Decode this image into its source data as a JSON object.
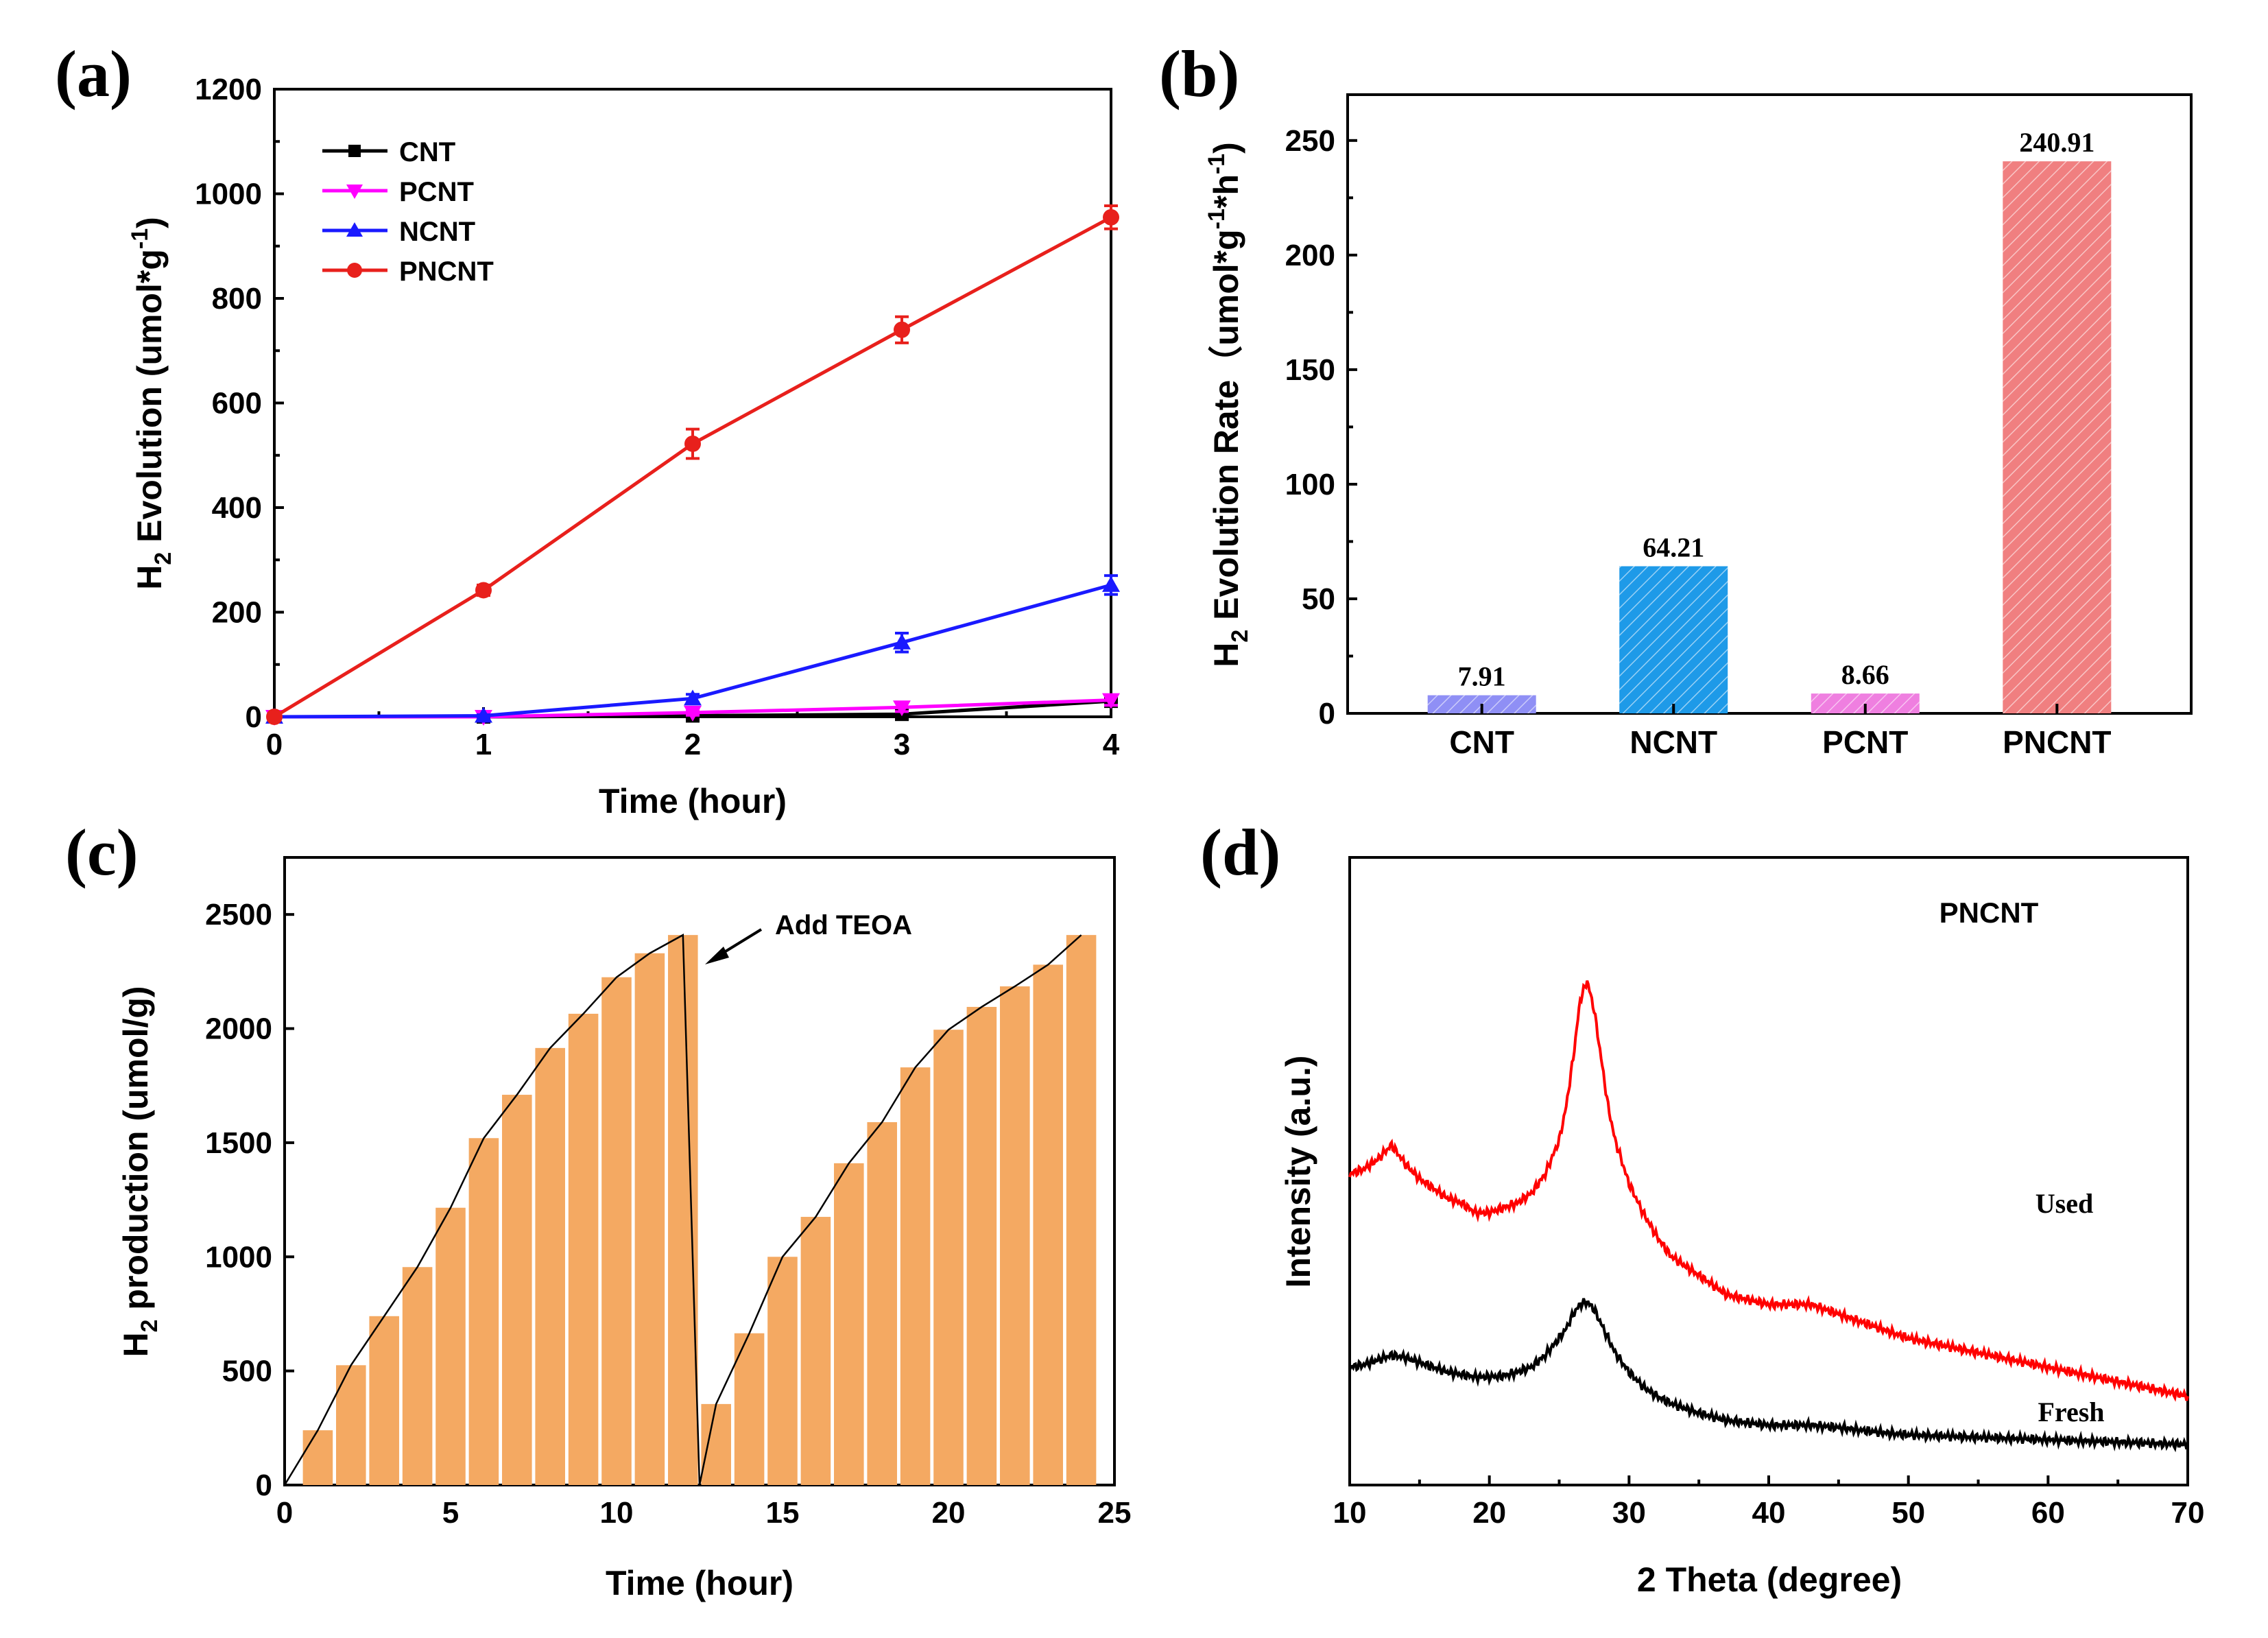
{
  "chart_data": [
    {
      "panel": "(a)",
      "type": "line",
      "xlabel": "Time (hour)",
      "ylabel": "H2 Evolution (umol*g-1)",
      "ylabel_parts": {
        "main": "H",
        "sub": "2",
        "rest": " Evolution (umol*g",
        "sup": "-1",
        "end": ")"
      },
      "x": [
        0,
        1,
        2,
        3,
        4
      ],
      "xlim": [
        0,
        4
      ],
      "ylim": [
        0,
        1200
      ],
      "xticks": [
        0,
        1,
        2,
        3,
        4
      ],
      "yticks": [
        0,
        200,
        400,
        600,
        800,
        1000,
        1200
      ],
      "legend_position": "top-left",
      "series": [
        {
          "name": "CNT",
          "color": "#000000",
          "marker": "square",
          "values": [
            0,
            0,
            2,
            5,
            30
          ],
          "errors": [
            0,
            0,
            0,
            0,
            0
          ]
        },
        {
          "name": "PCNT",
          "color": "#ff00ff",
          "marker": "triangle-down",
          "values": [
            0,
            0,
            8,
            18,
            32
          ],
          "errors": [
            0,
            0,
            5,
            8,
            10
          ]
        },
        {
          "name": "NCNT",
          "color": "#1a1aff",
          "marker": "triangle-up",
          "values": [
            0,
            2,
            35,
            142,
            252
          ],
          "errors": [
            0,
            2,
            8,
            18,
            18
          ]
        },
        {
          "name": "PNCNT",
          "color": "#e8201c",
          "marker": "circle",
          "values": [
            0,
            242,
            522,
            740,
            955
          ],
          "errors": [
            0,
            10,
            28,
            25,
            22
          ]
        }
      ]
    },
    {
      "panel": "(b)",
      "type": "bar",
      "ylabel": "H2 Evolution Rate (umol*g-1*h-1)",
      "ylabel_parts": {
        "main": "H",
        "sub": "2",
        "rest": " Evolution Rate（umol*g",
        "sup1": "-1",
        "mid": "*h",
        "sup2": "-1",
        "end": ")"
      },
      "categories": [
        "CNT",
        "NCNT",
        "PCNT",
        "PNCNT"
      ],
      "values": [
        7.91,
        64.21,
        8.66,
        240.91
      ],
      "value_labels": [
        "7.91",
        "64.21",
        "8.66",
        "240.91"
      ],
      "colors": [
        "#8f8ff5",
        "#1e9ae8",
        "#ef7fe0",
        "#f07f80"
      ],
      "ylim": [
        0,
        270
      ],
      "yticks": [
        0,
        50,
        100,
        150,
        200,
        250
      ]
    },
    {
      "panel": "(c)",
      "type": "bar",
      "xlabel": "Time (hour)",
      "ylabel": "H2 production (umol/g)",
      "ylabel_parts": {
        "main": "H",
        "sub": "2",
        "rest": " production (umol/g)"
      },
      "x": [
        1,
        2,
        3,
        4,
        5,
        6,
        7,
        8,
        9,
        10,
        11,
        12,
        13,
        14,
        15,
        16,
        17,
        18,
        19,
        20,
        21,
        22,
        23,
        24
      ],
      "values": [
        240,
        525,
        740,
        955,
        1215,
        1520,
        1710,
        1915,
        2065,
        2225,
        2330,
        2410,
        355,
        665,
        1000,
        1175,
        1410,
        1590,
        1830,
        1995,
        2095,
        2185,
        2280,
        2410
      ],
      "bar_color": "#f4a962",
      "trend_line": {
        "x": [
          0,
          1,
          2,
          3,
          4,
          5,
          6,
          7,
          8,
          9,
          10,
          11,
          12,
          12.5,
          13,
          14,
          15,
          16,
          17,
          18,
          19,
          20,
          21,
          22,
          23,
          24
        ],
        "y": [
          0,
          240,
          525,
          740,
          955,
          1215,
          1520,
          1710,
          1915,
          2065,
          2225,
          2330,
          2410,
          0,
          355,
          665,
          1000,
          1175,
          1410,
          1590,
          1830,
          1995,
          2095,
          2185,
          2280,
          2410
        ]
      },
      "annotation": "Add TEOA",
      "xlim": [
        0,
        25
      ],
      "ylim": [
        0,
        2750
      ],
      "xticks": [
        0,
        5,
        10,
        15,
        20,
        25
      ],
      "yticks": [
        0,
        500,
        1000,
        1500,
        2000,
        2500
      ]
    },
    {
      "panel": "(d)",
      "type": "line",
      "xlabel": "2 Theta (degree)",
      "ylabel": "Intensity (a.u.)",
      "title": "PNCNT",
      "xlim": [
        10,
        70
      ],
      "xticks": [
        10,
        20,
        30,
        40,
        50,
        60,
        70
      ],
      "series": [
        {
          "name": "Used",
          "color": "#ff0000",
          "x": [
            10,
            11,
            12,
            13,
            14,
            15,
            16,
            17,
            18,
            19,
            20,
            21,
            22,
            23,
            24,
            25,
            25.5,
            26,
            26.5,
            27,
            27.5,
            28,
            28.5,
            29,
            30,
            31,
            32,
            33,
            35,
            37,
            40,
            43,
            45,
            48,
            50,
            55,
            60,
            65,
            70
          ],
          "values": [
            0.58,
            0.59,
            0.61,
            0.64,
            0.6,
            0.57,
            0.55,
            0.53,
            0.52,
            0.5,
            0.5,
            0.51,
            0.52,
            0.54,
            0.58,
            0.65,
            0.72,
            0.82,
            0.94,
            0.98,
            0.92,
            0.82,
            0.72,
            0.65,
            0.56,
            0.5,
            0.45,
            0.41,
            0.37,
            0.33,
            0.31,
            0.31,
            0.29,
            0.26,
            0.24,
            0.21,
            0.18,
            0.15,
            0.12
          ]
        },
        {
          "name": "Fresh",
          "color": "#000000",
          "x": [
            10,
            11,
            12,
            13,
            14,
            15,
            16,
            17,
            18,
            19,
            20,
            21,
            22,
            23,
            24,
            25,
            25.5,
            26,
            26.5,
            27,
            27.5,
            28,
            28.5,
            29,
            30,
            31,
            32,
            33,
            35,
            37,
            40,
            43,
            45,
            48,
            50,
            55,
            60,
            65,
            70
          ],
          "values": [
            0.18,
            0.185,
            0.195,
            0.205,
            0.2,
            0.19,
            0.18,
            0.17,
            0.165,
            0.16,
            0.16,
            0.162,
            0.17,
            0.18,
            0.205,
            0.24,
            0.26,
            0.29,
            0.31,
            0.315,
            0.3,
            0.27,
            0.24,
            0.21,
            0.17,
            0.14,
            0.12,
            0.105,
            0.085,
            0.07,
            0.06,
            0.06,
            0.055,
            0.045,
            0.04,
            0.035,
            0.03,
            0.025,
            0.02
          ]
        }
      ],
      "series_labels": [
        "Used",
        "Fresh"
      ]
    }
  ]
}
